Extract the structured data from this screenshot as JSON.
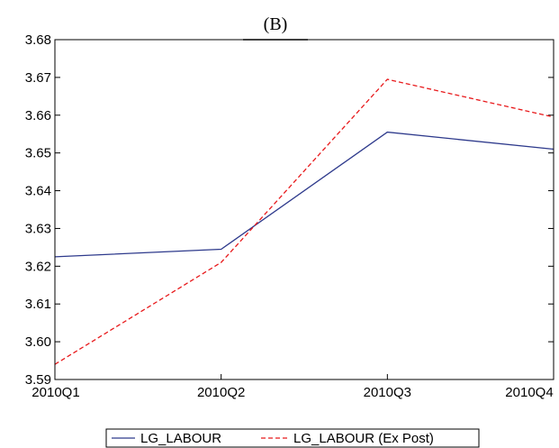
{
  "chart_data": {
    "type": "line",
    "title": "(B)",
    "xlabel": "",
    "ylabel": "",
    "categories": [
      "2010Q1",
      "2010Q2",
      "2010Q3",
      "2010Q4"
    ],
    "ylim": [
      3.59,
      3.68
    ],
    "yticks": [
      "3.59",
      "3.60",
      "3.61",
      "3.62",
      "3.63",
      "3.64",
      "3.65",
      "3.66",
      "3.67",
      "3.68"
    ],
    "grid": false,
    "legend_position": "bottom-center",
    "series": [
      {
        "name": "LG_LABOUR",
        "values": [
          3.6225,
          3.6245,
          3.6555,
          3.651
        ],
        "color": "#2e3a8c",
        "style": "solid"
      },
      {
        "name": "LG_LABOUR (Ex Post)",
        "values": [
          3.594,
          3.621,
          3.6695,
          3.6595
        ],
        "color": "#e8191b",
        "style": "dashed"
      }
    ]
  }
}
